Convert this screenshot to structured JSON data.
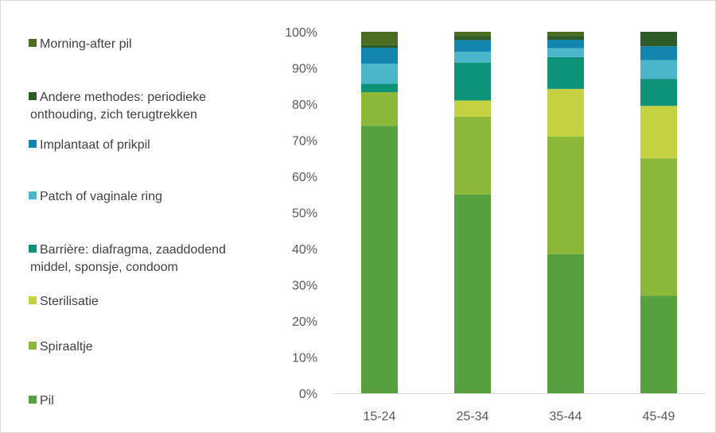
{
  "chart_data": {
    "type": "bar",
    "stacked": true,
    "percent": true,
    "categories": [
      "15-24",
      "25-34",
      "35-44",
      "45-49"
    ],
    "y_ticks": [
      "0%",
      "10%",
      "20%",
      "30%",
      "40%",
      "50%",
      "60%",
      "70%",
      "80%",
      "90%",
      "100%"
    ],
    "ylim": [
      0,
      100
    ],
    "grid": false,
    "legend_position": "left",
    "series": [
      {
        "name": "Pil",
        "color": "#56a040",
        "values": [
          74,
          55,
          38.5,
          27
        ]
      },
      {
        "name": "Spiraaltje",
        "color": "#8cb83a",
        "values": [
          9.3,
          21.5,
          32.5,
          38
        ]
      },
      {
        "name": "Sterilisatie",
        "color": "#c4d140",
        "values": [
          0,
          4.5,
          13.2,
          14.5
        ]
      },
      {
        "name": "Barrière: diafragma, zaaddodend middel, sponsje, condoom",
        "color": "#0e9278",
        "values": [
          2.3,
          10.5,
          8.8,
          7.5
        ]
      },
      {
        "name": "Patch of vaginale ring",
        "color": "#4bb5c9",
        "values": [
          5.6,
          3,
          2.5,
          5.2
        ]
      },
      {
        "name": "Implantaat of prikpil",
        "color": "#1386b0",
        "values": [
          4.4,
          3.2,
          2.3,
          3.8
        ]
      },
      {
        "name": "Andere methodes: periodieke onthouding, zich terugtrekken",
        "color": "#2d5a27",
        "values": [
          0.7,
          1.1,
          1.0,
          4.0
        ]
      },
      {
        "name": "Morning-after pil",
        "color": "#4c6d21",
        "values": [
          3.7,
          1.2,
          1.2,
          0
        ]
      }
    ]
  },
  "legend": {
    "order": [
      7,
      6,
      5,
      4,
      3,
      2,
      1,
      0
    ],
    "lines": [
      [
        "Morning-after pil"
      ],
      [
        "Andere methodes: periodieke",
        "onthouding, zich terugtrekken"
      ],
      [
        "Implantaat of prikpil"
      ],
      [
        "Patch of vaginale ring"
      ],
      [
        "Barrière: diafragma, zaaddodend",
        "middel, sponsje, condoom"
      ],
      [
        "Sterilisatie"
      ],
      [
        "Spiraaltje"
      ],
      [
        "Pil"
      ]
    ]
  }
}
